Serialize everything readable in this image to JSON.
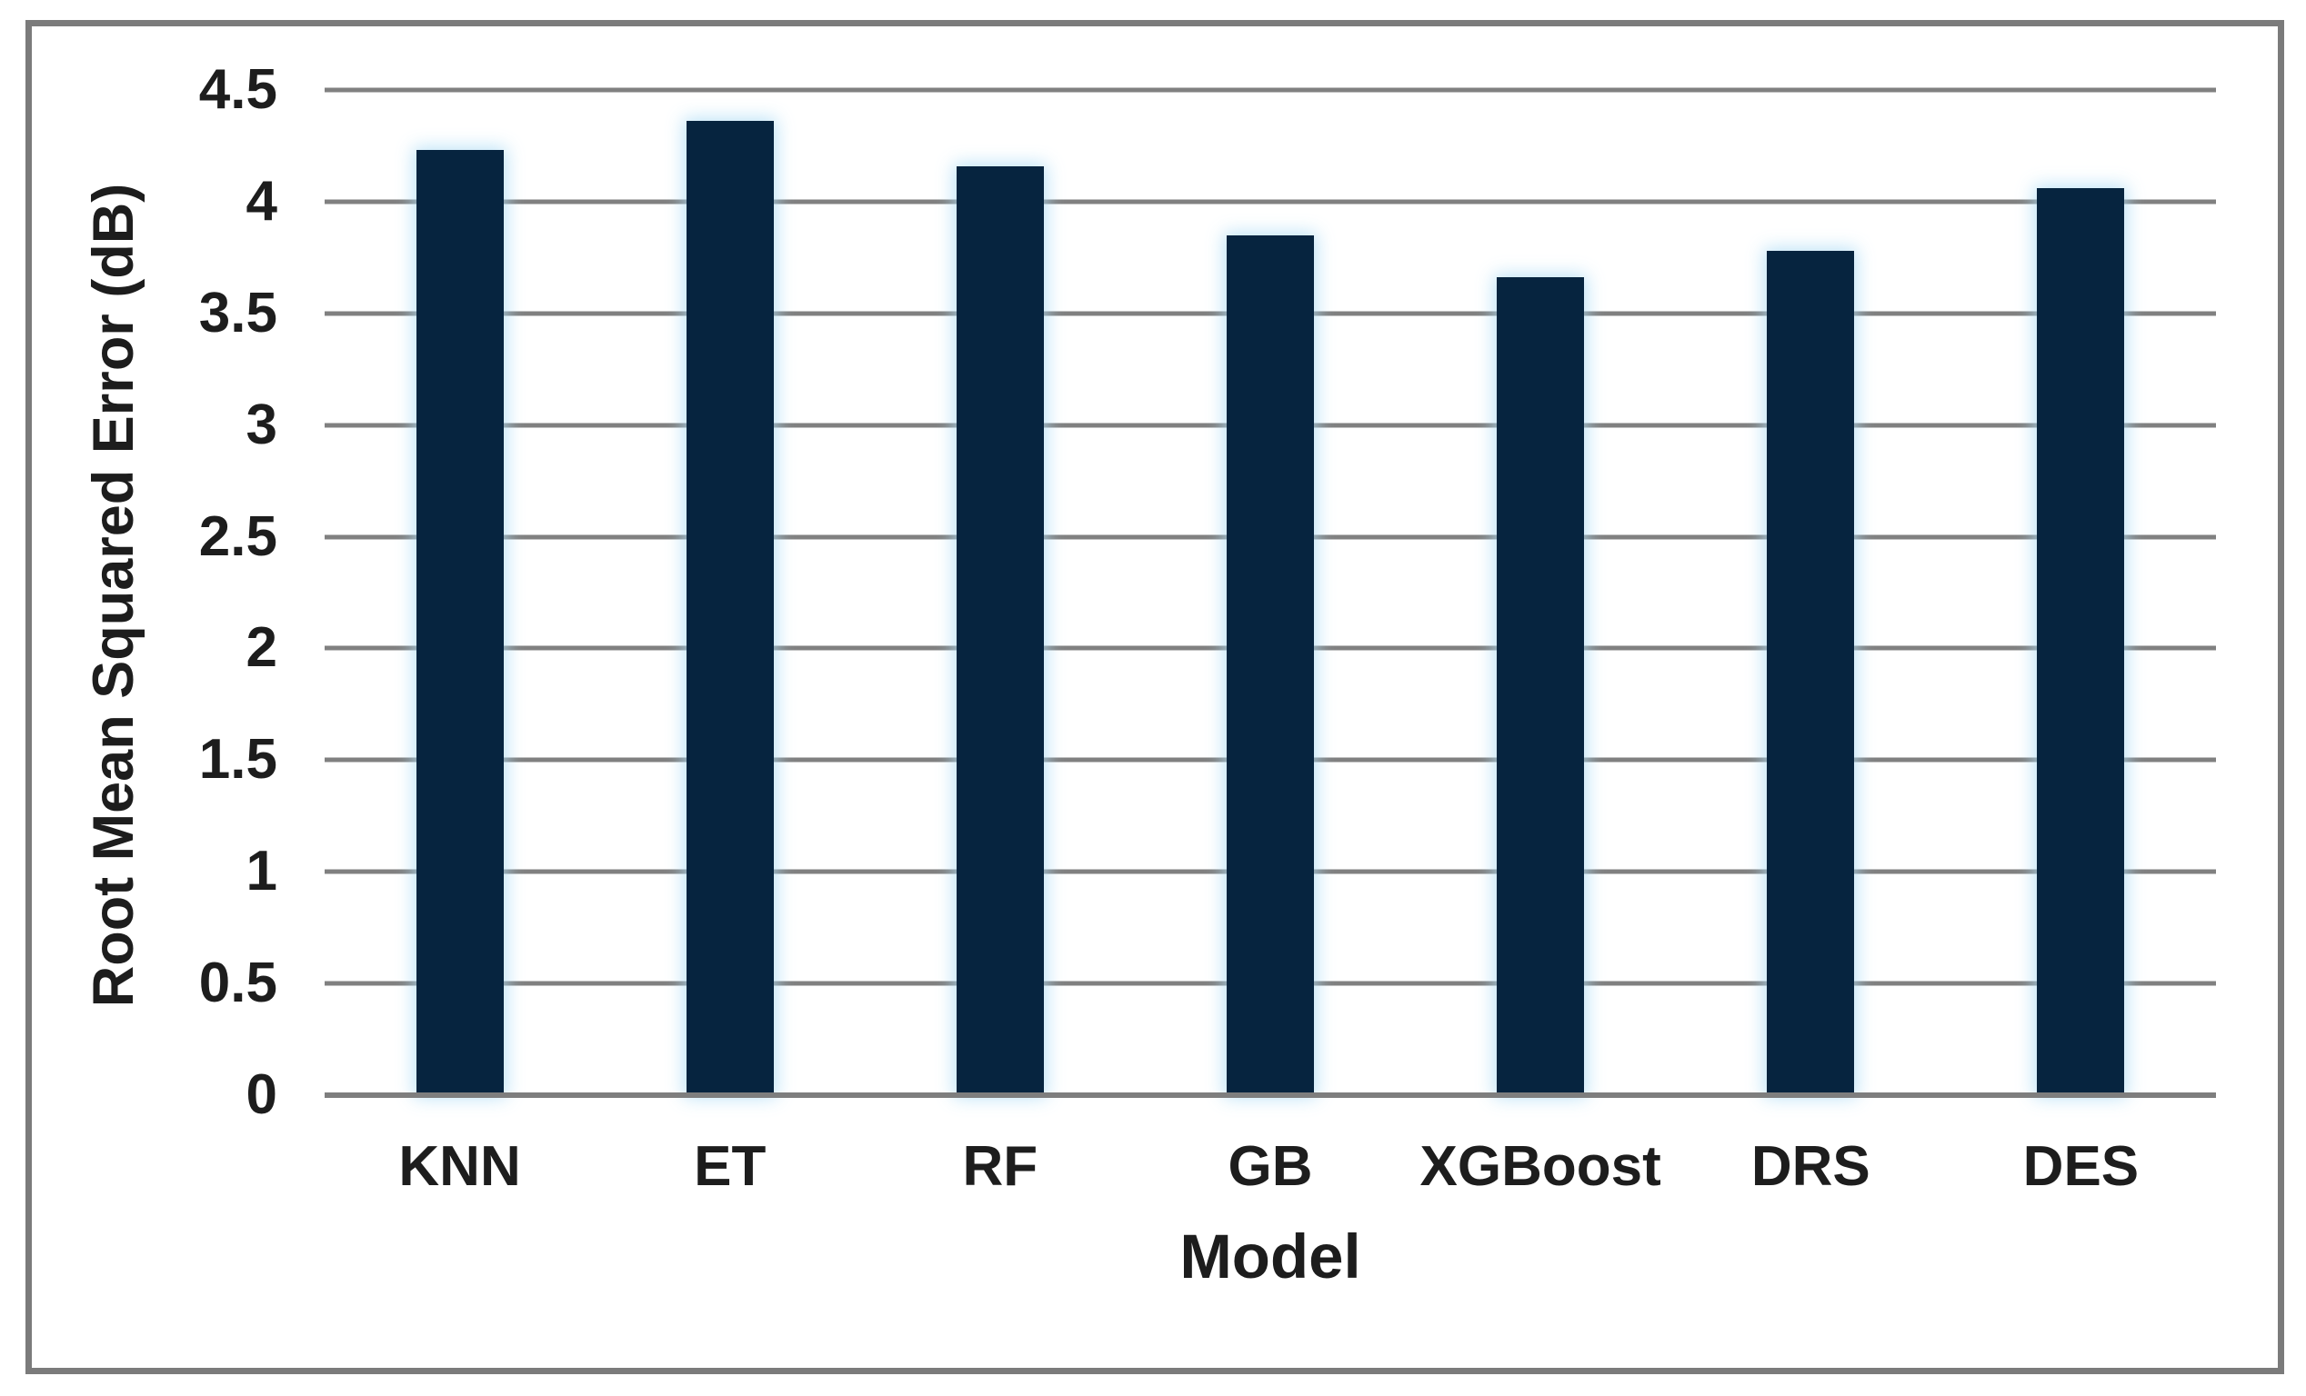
{
  "chart_data": {
    "type": "bar",
    "title": "",
    "xlabel": "Model",
    "ylabel": "Root Mean Squared Error (dB)",
    "categories": [
      "KNN",
      "ET",
      "RF",
      "GB",
      "XGBoost",
      "DRS",
      "DES"
    ],
    "values": [
      4.23,
      4.36,
      4.16,
      3.85,
      3.66,
      3.78,
      4.06
    ],
    "ylim": [
      0,
      4.5
    ],
    "yticks": [
      0,
      0.5,
      1,
      1.5,
      2,
      2.5,
      3,
      3.5,
      4,
      4.5
    ],
    "grid": "horizontal",
    "legend": "none",
    "bar_color": "#06243f",
    "bar_glow_color": "#addcf5",
    "gridline_color": "#808080",
    "axis_line_color": "#7e7e7e",
    "frame_color": "#7b7b7b",
    "text_color": "#1d1d1d",
    "background_color": "#ffffff"
  }
}
